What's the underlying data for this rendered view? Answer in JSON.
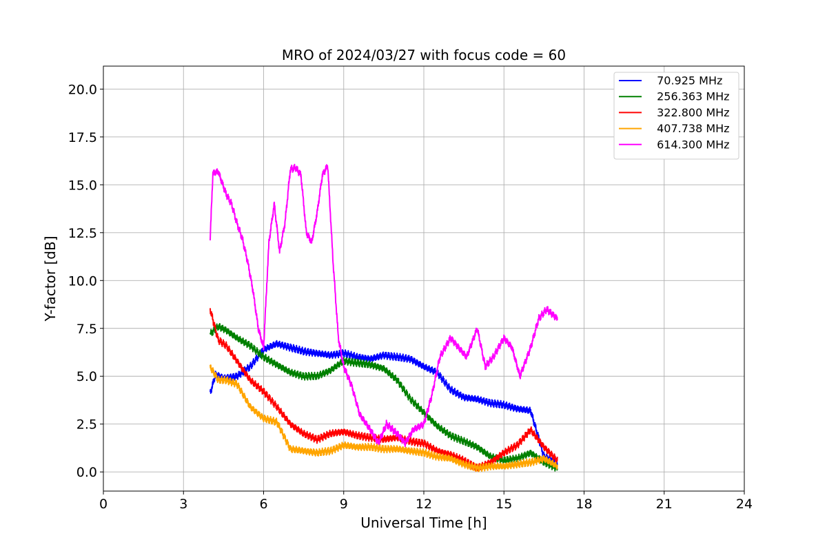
{
  "chart_data": {
    "type": "line",
    "title": "MRO of 2024/03/27 with focus code = 60",
    "xlabel": "Universal Time [h]",
    "ylabel": "Y-factor [dB]",
    "xlim": [
      0,
      24
    ],
    "ylim": [
      -1.0,
      21.2
    ],
    "x_ticks": [
      0,
      3,
      6,
      9,
      12,
      15,
      18,
      21,
      24
    ],
    "x_tick_labels": [
      "0",
      "3",
      "6",
      "9",
      "12",
      "15",
      "18",
      "21",
      "24"
    ],
    "y_ticks": [
      0.0,
      2.5,
      5.0,
      7.5,
      10.0,
      12.5,
      15.0,
      17.5,
      20.0
    ],
    "y_tick_labels": [
      "0.0",
      "2.5",
      "5.0",
      "7.5",
      "10.0",
      "12.5",
      "15.0",
      "17.5",
      "20.0"
    ],
    "grid": true,
    "legend_position": "top-right",
    "spike_period_h": 0.25,
    "series": [
      {
        "name": " 70.925 MHz",
        "color": "#0000ff",
        "spike_low": 0.2,
        "x": [
          4.0,
          4.2,
          4.5,
          5.0,
          5.5,
          6.0,
          6.5,
          7.0,
          7.5,
          8.0,
          8.5,
          9.0,
          9.5,
          10.0,
          10.5,
          11.0,
          11.5,
          12.0,
          12.5,
          13.0,
          13.5,
          14.0,
          14.5,
          15.0,
          15.5,
          16.0,
          16.5,
          17.0
        ],
        "y": [
          4.1,
          5.1,
          4.9,
          5.0,
          5.5,
          6.4,
          6.7,
          6.5,
          6.3,
          6.2,
          6.1,
          6.2,
          6.0,
          5.9,
          6.1,
          6.0,
          5.9,
          5.5,
          5.2,
          4.3,
          3.9,
          3.8,
          3.6,
          3.5,
          3.3,
          3.2,
          0.8,
          0.5
        ]
      },
      {
        "name": " 256.363 MHz",
        "color": "#008000",
        "x": [
          4.0,
          4.3,
          4.6,
          5.0,
          5.5,
          6.0,
          6.5,
          7.0,
          7.5,
          8.0,
          8.5,
          9.0,
          9.5,
          10.0,
          10.5,
          11.0,
          11.5,
          12.0,
          12.5,
          13.0,
          13.5,
          14.0,
          14.5,
          15.0,
          15.5,
          16.0,
          16.5,
          17.0
        ],
        "y": [
          7.2,
          7.6,
          7.4,
          7.0,
          6.6,
          6.0,
          5.6,
          5.2,
          5.0,
          5.0,
          5.3,
          5.8,
          5.7,
          5.6,
          5.4,
          4.8,
          3.8,
          3.1,
          2.4,
          1.9,
          1.6,
          1.3,
          0.8,
          0.6,
          0.7,
          1.0,
          0.5,
          0.2
        ]
      },
      {
        "name": " 322.800 MHz",
        "color": "#ff0000",
        "x": [
          4.0,
          4.3,
          4.6,
          5.0,
          5.5,
          6.0,
          6.5,
          7.0,
          7.5,
          8.0,
          8.5,
          9.0,
          9.5,
          10.0,
          10.5,
          11.0,
          11.5,
          12.0,
          12.5,
          13.0,
          13.5,
          14.0,
          14.5,
          15.0,
          15.5,
          16.0,
          16.5,
          17.0
        ],
        "y": [
          8.5,
          6.9,
          6.6,
          5.8,
          4.8,
          4.2,
          3.4,
          2.5,
          2.0,
          1.7,
          2.0,
          2.1,
          1.9,
          1.8,
          1.7,
          1.8,
          1.6,
          1.5,
          1.1,
          0.9,
          0.6,
          0.2,
          0.5,
          1.0,
          1.4,
          2.2,
          1.3,
          0.6
        ]
      },
      {
        "name": " 407.738 MHz",
        "color": "#ffa500",
        "spike_high": 20.0,
        "x": [
          4.0,
          4.3,
          4.6,
          5.0,
          5.5,
          6.0,
          6.5,
          7.0,
          7.5,
          8.0,
          8.5,
          9.0,
          9.5,
          10.0,
          10.5,
          11.0,
          11.5,
          12.0,
          12.5,
          13.0,
          13.5,
          14.0,
          14.5,
          15.0,
          15.5,
          16.0,
          16.5,
          17.0
        ],
        "y": [
          5.5,
          4.8,
          4.8,
          4.6,
          3.4,
          2.8,
          2.6,
          1.2,
          1.1,
          1.0,
          1.1,
          1.4,
          1.3,
          1.3,
          1.2,
          1.2,
          1.1,
          1.0,
          0.8,
          0.7,
          0.4,
          0.2,
          0.3,
          0.3,
          0.4,
          0.5,
          0.7,
          0.3
        ]
      },
      {
        "name": " 614.300 MHz",
        "color": "#ff00ff",
        "x": [
          4.0,
          4.1,
          4.3,
          4.6,
          4.8,
          5.0,
          5.2,
          5.4,
          5.6,
          5.8,
          6.0,
          6.2,
          6.4,
          6.6,
          6.8,
          7.0,
          7.2,
          7.4,
          7.6,
          7.8,
          8.0,
          8.2,
          8.4,
          8.6,
          8.8,
          9.0,
          9.3,
          9.6,
          10.0,
          10.3,
          10.6,
          11.0,
          11.3,
          11.6,
          12.0,
          12.3,
          12.6,
          13.0,
          13.3,
          13.6,
          14.0,
          14.3,
          14.6,
          15.0,
          15.3,
          15.6,
          16.0,
          16.3,
          16.6,
          17.0
        ],
        "y": [
          12.2,
          15.6,
          15.7,
          14.5,
          14.0,
          13.0,
          12.2,
          11.0,
          9.5,
          7.5,
          6.5,
          12.0,
          14.0,
          11.5,
          13.0,
          15.8,
          15.9,
          15.5,
          12.5,
          12.0,
          13.5,
          15.5,
          16.0,
          11.0,
          7.0,
          5.5,
          4.5,
          3.0,
          2.2,
          1.5,
          2.5,
          2.0,
          1.5,
          2.2,
          2.5,
          4.0,
          6.0,
          7.0,
          6.5,
          6.0,
          7.5,
          5.5,
          6.0,
          7.0,
          6.5,
          5.0,
          6.5,
          8.0,
          8.5,
          8.0
        ]
      }
    ]
  }
}
